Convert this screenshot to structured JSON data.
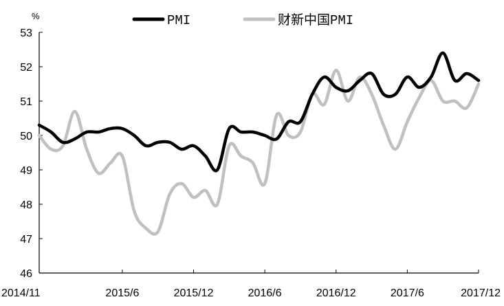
{
  "chart_data": {
    "type": "line",
    "unit": "%",
    "ylim": [
      46,
      53
    ],
    "yticks": [
      46,
      47,
      48,
      49,
      50,
      51,
      52,
      53
    ],
    "x": [
      "2014/11",
      "2014/12",
      "2015/1",
      "2015/2",
      "2015/3",
      "2015/4",
      "2015/5",
      "2015/6",
      "2015/7",
      "2015/8",
      "2015/9",
      "2015/10",
      "2015/11",
      "2015/12",
      "2016/1",
      "2016/2",
      "2016/3",
      "2016/4",
      "2016/5",
      "2016/6",
      "2016/7",
      "2016/8",
      "2016/9",
      "2016/10",
      "2016/11",
      "2016/12",
      "2017/1",
      "2017/2",
      "2017/3",
      "2017/4",
      "2017/5",
      "2017/6",
      "2017/7",
      "2017/8",
      "2017/9",
      "2017/10",
      "2017/11",
      "2017/12"
    ],
    "xtick_labels": [
      "2014/11",
      "2015/6",
      "2015/12",
      "2016/6",
      "2016/12",
      "2017/6",
      "2017/12"
    ],
    "grid": false,
    "legend_position": "top",
    "series": [
      {
        "name": "PMI",
        "color": "#000000",
        "values": [
          50.3,
          50.1,
          49.8,
          49.9,
          50.1,
          50.1,
          50.2,
          50.2,
          50.0,
          49.7,
          49.8,
          49.8,
          49.6,
          49.7,
          49.4,
          49.0,
          50.2,
          50.1,
          50.1,
          50.0,
          49.9,
          50.4,
          50.4,
          51.2,
          51.7,
          51.4,
          51.3,
          51.6,
          51.8,
          51.2,
          51.2,
          51.7,
          51.4,
          51.7,
          52.4,
          51.6,
          51.8,
          51.6
        ]
      },
      {
        "name": "财新中国PMI",
        "color": "#c0c0c0",
        "values": [
          50.0,
          49.6,
          49.7,
          50.7,
          49.6,
          48.9,
          49.2,
          49.4,
          47.8,
          47.3,
          47.2,
          48.3,
          48.6,
          48.2,
          48.4,
          48.0,
          49.7,
          49.4,
          49.2,
          48.6,
          50.6,
          50.0,
          50.1,
          51.2,
          50.9,
          51.9,
          51.0,
          51.7,
          51.2,
          50.3,
          49.6,
          50.4,
          51.1,
          51.6,
          51.0,
          51.0,
          50.8,
          51.5
        ]
      }
    ]
  }
}
